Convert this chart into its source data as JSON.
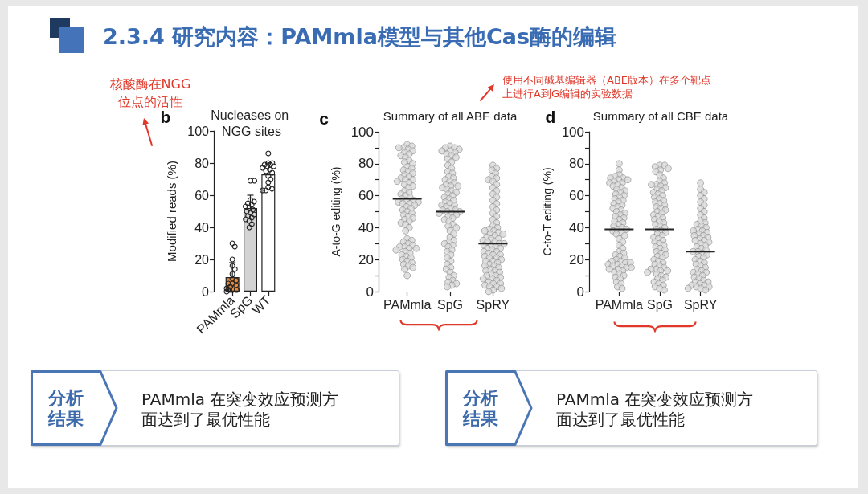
{
  "chart_data": [
    {
      "type": "other",
      "title": "2.3.4 研究内容：PAMmla模型与其他Cas酶的编辑"
    },
    {
      "type": "bar",
      "title": "Nucleases on NGG sites",
      "ylabel": "Modified reads (%)",
      "annotations": [
        "b",
        "核酸酶在NGG位点的活性"
      ],
      "categories": [
        "PAMmla",
        "SpG",
        "WT"
      ],
      "ylim": [
        0,
        100
      ],
      "yticks": [
        0,
        20,
        40,
        60,
        80,
        100
      ],
      "marker": "circle",
      "series": [
        {
          "type": "bar",
          "values": [
            9,
            52,
            73
          ],
          "colors": [
            "#e58a3c",
            "#d3d3d3",
            "#ffffff"
          ],
          "errors": [
            [
              9,
              18
            ],
            [
              52,
              60
            ],
            [
              73,
              80
            ]
          ]
        },
        {
          "type": "scatter",
          "color": "#222222",
          "x": [
            "PAMmla",
            "PAMmla",
            "PAMmla",
            "PAMmla",
            "PAMmla",
            "PAMmla",
            "PAMmla",
            "PAMmla",
            "PAMmla",
            "PAMmla",
            "PAMmla",
            "PAMmla",
            "PAMmla",
            "PAMmla",
            "PAMmla",
            "PAMmla",
            "PAMmla",
            "SpG",
            "SpG",
            "SpG",
            "SpG",
            "SpG",
            "SpG",
            "SpG",
            "SpG",
            "SpG",
            "SpG",
            "SpG",
            "SpG",
            "SpG",
            "SpG",
            "SpG",
            "SpG",
            "SpG",
            "SpG",
            "WT",
            "WT",
            "WT",
            "WT",
            "WT",
            "WT",
            "WT",
            "WT",
            "WT",
            "WT",
            "WT",
            "WT",
            "WT",
            "WT",
            "WT",
            "WT",
            "WT",
            "WT"
          ],
          "values": [
            30,
            28,
            20,
            16,
            14,
            11,
            8,
            7,
            5,
            5,
            4,
            3,
            2,
            1,
            1,
            1,
            0,
            69,
            69,
            57,
            56,
            55,
            54,
            53,
            52,
            51,
            50,
            49,
            48,
            47,
            46,
            45,
            44,
            42,
            40,
            86,
            80,
            80,
            79,
            79,
            78,
            78,
            77,
            76,
            75,
            74,
            72,
            70,
            68,
            65,
            64,
            63,
            63
          ]
        }
      ]
    },
    {
      "type": "scatter",
      "title": "Summary of all ABE data",
      "ylabel": "A-to-G editing (%)",
      "annotations": [
        "c",
        "使用不同碱基编辑器（ABE版本）在多个靶点上进行A到G编辑的实验数据"
      ],
      "categories": [
        "PAMmla",
        "SpG",
        "SpRY"
      ],
      "ylim": [
        0,
        100
      ],
      "yticks": [
        0,
        {
          "value": 10,
          "label": null
        },
        20,
        {
          "value": 30,
          "label": null
        },
        40,
        {
          "value": 50,
          "label": null
        },
        60,
        {
          "value": 70,
          "label": null
        },
        80,
        {
          "value": 90,
          "label": null
        },
        100
      ],
      "marker": "circle",
      "series": [
        {
          "color": "#d8d8d8",
          "x": [
            "PAMmla",
            "PAMmla",
            "PAMmla",
            "PAMmla",
            "PAMmla",
            "PAMmla",
            "PAMmla",
            "PAMmla",
            "PAMmla",
            "PAMmla",
            "PAMmla",
            "PAMmla",
            "PAMmla",
            "PAMmla",
            "PAMmla",
            "PAMmla",
            "PAMmla",
            "PAMmla",
            "PAMmla",
            "PAMmla",
            "PAMmla",
            "PAMmla",
            "PAMmla",
            "PAMmla",
            "PAMmla",
            "PAMmla",
            "PAMmla",
            "PAMmla",
            "PAMmla",
            "PAMmla",
            "PAMmla",
            "PAMmla",
            "PAMmla",
            "PAMmla",
            "PAMmla",
            "PAMmla",
            "PAMmla",
            "PAMmla",
            "PAMmla",
            "PAMmla",
            "PAMmla",
            "PAMmla",
            "PAMmla",
            "PAMmla",
            "PAMmla",
            "PAMmla",
            "PAMmla",
            "PAMmla",
            "PAMmla",
            "PAMmla",
            "PAMmla",
            "PAMmla",
            "PAMmla",
            "PAMmla",
            "PAMmla",
            "PAMmla",
            "PAMmla",
            "PAMmla",
            "PAMmla",
            "PAMmla",
            "PAMmla",
            "PAMmla",
            "PAMmla",
            "PAMmla",
            "PAMmla",
            "PAMmla",
            "PAMmla",
            "PAMmla",
            "PAMmla",
            "PAMmla",
            "PAMmla",
            "PAMmla",
            "PAMmla",
            "PAMmla",
            "PAMmla",
            "PAMmla",
            "PAMmla",
            "PAMmla"
          ],
          "values": [
            92,
            91,
            90,
            90,
            89,
            88,
            87,
            86,
            85,
            84,
            82,
            81,
            80,
            78,
            77,
            76,
            75,
            74,
            73,
            72,
            71,
            70,
            70,
            69,
            68,
            67,
            66,
            65,
            63,
            62,
            61,
            60,
            59,
            58,
            57,
            57,
            56,
            56,
            55,
            55,
            54,
            53,
            52,
            51,
            50,
            49,
            48,
            47,
            46,
            45,
            44,
            43,
            42,
            40,
            38,
            33,
            32,
            31,
            30,
            29,
            28,
            28,
            27,
            27,
            26,
            25,
            24,
            23,
            22,
            21,
            20,
            19,
            18,
            17,
            16,
            15,
            14,
            10
          ]
        },
        {
          "color": "#d8d8d8",
          "x": [
            "SpG",
            "SpG",
            "SpG",
            "SpG",
            "SpG",
            "SpG",
            "SpG",
            "SpG",
            "SpG",
            "SpG",
            "SpG",
            "SpG",
            "SpG",
            "SpG",
            "SpG",
            "SpG",
            "SpG",
            "SpG",
            "SpG",
            "SpG",
            "SpG",
            "SpG",
            "SpG",
            "SpG",
            "SpG",
            "SpG",
            "SpG",
            "SpG",
            "SpG",
            "SpG",
            "SpG",
            "SpG",
            "SpG",
            "SpG",
            "SpG",
            "SpG",
            "SpG",
            "SpG",
            "SpG",
            "SpG",
            "SpG",
            "SpG",
            "SpG",
            "SpG",
            "SpG",
            "SpG",
            "SpG",
            "SpG",
            "SpG",
            "SpG",
            "SpG",
            "SpG",
            "SpG",
            "SpG",
            "SpG",
            "SpG",
            "SpG",
            "SpG",
            "SpG",
            "SpG",
            "SpG",
            "SpG",
            "SpG",
            "SpG",
            "SpG",
            "SpG",
            "SpG",
            "SpG",
            "SpG",
            "SpG",
            "SpG",
            "SpG",
            "SpG",
            "SpG",
            "SpG",
            "SpG",
            "SpG"
          ],
          "values": [
            91,
            90,
            90,
            89,
            88,
            88,
            87,
            86,
            85,
            84,
            83,
            81,
            79,
            77,
            75,
            74,
            72,
            71,
            70,
            69,
            68,
            67,
            66,
            66,
            65,
            64,
            63,
            62,
            61,
            60,
            59,
            58,
            57,
            56,
            55,
            54,
            54,
            53,
            52,
            51,
            51,
            50,
            50,
            49,
            49,
            48,
            47,
            46,
            45,
            44,
            42,
            41,
            40,
            38,
            36,
            34,
            32,
            31,
            30,
            29,
            28,
            26,
            25,
            23,
            21,
            19,
            17,
            15,
            14,
            12,
            10,
            9,
            7,
            6,
            5,
            4,
            3
          ]
        },
        {
          "color": "#d8d8d8",
          "x": [
            "SpRY",
            "SpRY",
            "SpRY",
            "SpRY",
            "SpRY",
            "SpRY",
            "SpRY",
            "SpRY",
            "SpRY",
            "SpRY",
            "SpRY",
            "SpRY",
            "SpRY",
            "SpRY",
            "SpRY",
            "SpRY",
            "SpRY",
            "SpRY",
            "SpRY",
            "SpRY",
            "SpRY",
            "SpRY",
            "SpRY",
            "SpRY",
            "SpRY",
            "SpRY",
            "SpRY",
            "SpRY",
            "SpRY",
            "SpRY",
            "SpRY",
            "SpRY",
            "SpRY",
            "SpRY",
            "SpRY",
            "SpRY",
            "SpRY",
            "SpRY",
            "SpRY",
            "SpRY",
            "SpRY",
            "SpRY",
            "SpRY",
            "SpRY",
            "SpRY",
            "SpRY",
            "SpRY",
            "SpRY",
            "SpRY",
            "SpRY",
            "SpRY",
            "SpRY",
            "SpRY",
            "SpRY",
            "SpRY",
            "SpRY",
            "SpRY",
            "SpRY",
            "SpRY",
            "SpRY",
            "SpRY",
            "SpRY",
            "SpRY",
            "SpRY",
            "SpRY",
            "SpRY",
            "SpRY",
            "SpRY",
            "SpRY",
            "SpRY",
            "SpRY",
            "SpRY",
            "SpRY",
            "SpRY",
            "SpRY",
            "SpRY",
            "SpRY",
            "SpRY",
            "SpRY",
            "SpRY"
          ],
          "values": [
            79,
            77,
            76,
            74,
            72,
            71,
            70,
            69,
            67,
            65,
            63,
            61,
            59,
            57,
            55,
            53,
            51,
            49,
            47,
            45,
            43,
            41,
            40,
            39,
            38,
            38,
            37,
            36,
            36,
            35,
            34,
            33,
            33,
            32,
            31,
            31,
            30,
            30,
            29,
            29,
            28,
            27,
            27,
            26,
            25,
            25,
            24,
            23,
            23,
            22,
            21,
            21,
            20,
            19,
            19,
            18,
            17,
            16,
            16,
            15,
            14,
            13,
            13,
            12,
            11,
            10,
            10,
            9,
            8,
            8,
            7,
            6,
            5,
            5,
            4,
            3,
            3,
            2,
            1,
            0
          ]
        },
        {
          "type": "bar",
          "color": "#222222",
          "base": [
            58,
            50,
            30
          ],
          "values": [
            0,
            0,
            0
          ]
        }
      ]
    },
    {
      "type": "scatter",
      "title": "Summary of all CBE data",
      "ylabel": "C-to-T editing (%)",
      "annotations": [
        "d"
      ],
      "categories": [
        "PAMmla",
        "SpG",
        "SpRY"
      ],
      "ylim": [
        0,
        100
      ],
      "yticks": [
        0,
        {
          "value": 10,
          "label": null
        },
        20,
        {
          "value": 30,
          "label": null
        },
        40,
        {
          "value": 50,
          "label": null
        },
        60,
        {
          "value": 70,
          "label": null
        },
        80,
        {
          "value": 90,
          "label": null
        },
        100
      ],
      "marker": "circle",
      "series": [
        {
          "color": "#d8d8d8",
          "x": [
            "PAMmla",
            "PAMmla",
            "PAMmla",
            "PAMmla",
            "PAMmla",
            "PAMmla",
            "PAMmla",
            "PAMmla",
            "PAMmla",
            "PAMmla",
            "PAMmla",
            "PAMmla",
            "PAMmla",
            "PAMmla",
            "PAMmla",
            "PAMmla",
            "PAMmla",
            "PAMmla",
            "PAMmla",
            "PAMmla",
            "PAMmla",
            "PAMmla",
            "PAMmla",
            "PAMmla",
            "PAMmla",
            "PAMmla",
            "PAMmla",
            "PAMmla",
            "PAMmla",
            "PAMmla",
            "PAMmla",
            "PAMmla",
            "PAMmla",
            "PAMmla",
            "PAMmla",
            "PAMmla",
            "PAMmla",
            "PAMmla",
            "PAMmla",
            "PAMmla",
            "PAMmla",
            "PAMmla",
            "PAMmla",
            "PAMmla",
            "PAMmla",
            "PAMmla",
            "PAMmla",
            "PAMmla",
            "PAMmla",
            "PAMmla",
            "PAMmla",
            "PAMmla",
            "PAMmla",
            "PAMmla",
            "PAMmla",
            "PAMmla",
            "PAMmla",
            "PAMmla",
            "PAMmla",
            "PAMmla",
            "PAMmla",
            "PAMmla",
            "PAMmla",
            "PAMmla",
            "PAMmla",
            "PAMmla",
            "PAMmla",
            "PAMmla",
            "PAMmla",
            "PAMmla",
            "PAMmla",
            "PAMmla",
            "PAMmla",
            "PAMmla",
            "PAMmla",
            "PAMmla",
            "PAMmla"
          ],
          "values": [
            80,
            76,
            73,
            72,
            71,
            71,
            70,
            70,
            69,
            68,
            68,
            67,
            66,
            65,
            64,
            63,
            62,
            61,
            60,
            59,
            58,
            57,
            56,
            55,
            54,
            53,
            52,
            51,
            50,
            49,
            48,
            47,
            46,
            45,
            44,
            43,
            42,
            41,
            40,
            39,
            39,
            38,
            37,
            36,
            35,
            33,
            31,
            29,
            27,
            25,
            24,
            23,
            22,
            21,
            20,
            19,
            19,
            18,
            18,
            17,
            17,
            16,
            16,
            15,
            15,
            14,
            14,
            13,
            12,
            11,
            10,
            9,
            8,
            6,
            5,
            3,
            2
          ]
        },
        {
          "color": "#d8d8d8",
          "x": [
            "SpG",
            "SpG",
            "SpG",
            "SpG",
            "SpG",
            "SpG",
            "SpG",
            "SpG",
            "SpG",
            "SpG",
            "SpG",
            "SpG",
            "SpG",
            "SpG",
            "SpG",
            "SpG",
            "SpG",
            "SpG",
            "SpG",
            "SpG",
            "SpG",
            "SpG",
            "SpG",
            "SpG",
            "SpG",
            "SpG",
            "SpG",
            "SpG",
            "SpG",
            "SpG",
            "SpG",
            "SpG",
            "SpG",
            "SpG",
            "SpG",
            "SpG",
            "SpG",
            "SpG",
            "SpG",
            "SpG",
            "SpG",
            "SpG",
            "SpG",
            "SpG",
            "SpG",
            "SpG",
            "SpG",
            "SpG",
            "SpG",
            "SpG",
            "SpG",
            "SpG",
            "SpG",
            "SpG",
            "SpG",
            "SpG",
            "SpG",
            "SpG",
            "SpG",
            "SpG",
            "SpG",
            "SpG",
            "SpG",
            "SpG",
            "SpG",
            "SpG",
            "SpG",
            "SpG",
            "SpG",
            "SpG",
            "SpG",
            "SpG",
            "SpG",
            "SpG",
            "SpG",
            "SpG",
            "SpG",
            "SpG",
            "SpG",
            "SpG"
          ],
          "values": [
            79,
            79,
            78,
            77,
            76,
            75,
            73,
            71,
            69,
            68,
            67,
            67,
            66,
            65,
            64,
            63,
            62,
            61,
            60,
            59,
            58,
            57,
            56,
            55,
            54,
            53,
            52,
            51,
            50,
            49,
            48,
            47,
            46,
            45,
            44,
            43,
            42,
            41,
            40,
            39,
            38,
            37,
            36,
            35,
            34,
            33,
            32,
            31,
            30,
            29,
            28,
            27,
            26,
            25,
            24,
            23,
            22,
            21,
            20,
            19,
            18,
            17,
            16,
            15,
            14,
            14,
            13,
            13,
            12,
            11,
            10,
            9,
            8,
            7,
            6,
            5,
            4,
            3,
            2,
            1
          ]
        },
        {
          "color": "#d8d8d8",
          "x": [
            "SpRY",
            "SpRY",
            "SpRY",
            "SpRY",
            "SpRY",
            "SpRY",
            "SpRY",
            "SpRY",
            "SpRY",
            "SpRY",
            "SpRY",
            "SpRY",
            "SpRY",
            "SpRY",
            "SpRY",
            "SpRY",
            "SpRY",
            "SpRY",
            "SpRY",
            "SpRY",
            "SpRY",
            "SpRY",
            "SpRY",
            "SpRY",
            "SpRY",
            "SpRY",
            "SpRY",
            "SpRY",
            "SpRY",
            "SpRY",
            "SpRY",
            "SpRY",
            "SpRY",
            "SpRY",
            "SpRY",
            "SpRY",
            "SpRY",
            "SpRY",
            "SpRY",
            "SpRY",
            "SpRY",
            "SpRY",
            "SpRY",
            "SpRY",
            "SpRY",
            "SpRY",
            "SpRY",
            "SpRY",
            "SpRY",
            "SpRY",
            "SpRY",
            "SpRY",
            "SpRY",
            "SpRY",
            "SpRY",
            "SpRY",
            "SpRY",
            "SpRY",
            "SpRY",
            "SpRY",
            "SpRY",
            "SpRY",
            "SpRY",
            "SpRY"
          ],
          "values": [
            68,
            64,
            62,
            60,
            58,
            56,
            54,
            52,
            50,
            48,
            46,
            44,
            43,
            42,
            41,
            40,
            39,
            38,
            38,
            37,
            36,
            35,
            35,
            34,
            33,
            32,
            32,
            31,
            30,
            29,
            28,
            27,
            26,
            25,
            25,
            24,
            23,
            22,
            21,
            20,
            19,
            18,
            17,
            16,
            15,
            14,
            13,
            12,
            12,
            11,
            10,
            9,
            8,
            7,
            6,
            6,
            5,
            4,
            4,
            3,
            3,
            2,
            2,
            1
          ]
        },
        {
          "type": "bar",
          "color": "#222222",
          "base": [
            39,
            39,
            25
          ],
          "values": [
            0,
            0,
            0
          ]
        }
      ]
    },
    {
      "type": "other",
      "title": "分析结果",
      "annotations": [
        "PAMmla 在突变效应预测方面达到了最优性能"
      ]
    },
    {
      "type": "other",
      "title": "分析结果",
      "annotations": [
        "PAMmla 在突变效应预测方面达到了最优性能"
      ]
    }
  ]
}
